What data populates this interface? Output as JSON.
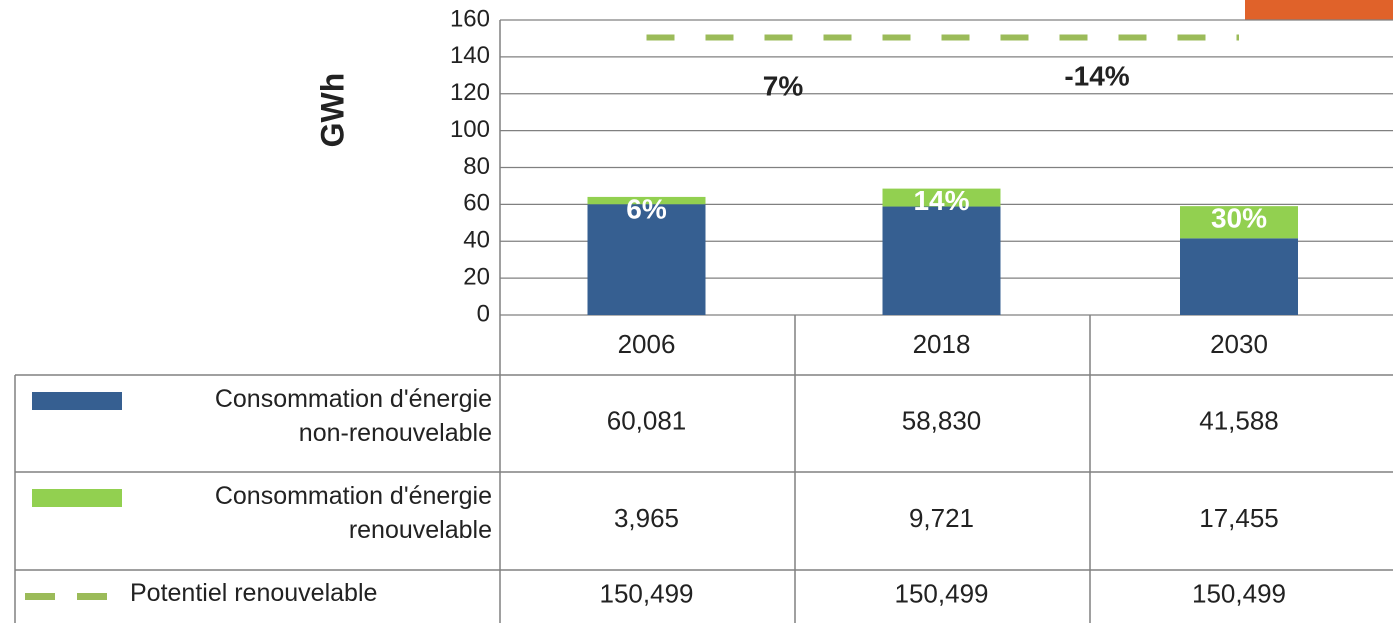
{
  "chart_data": {
    "type": "stacked_bar_with_table",
    "ylabel": "GWh",
    "categories": [
      "2006",
      "2018",
      "2030"
    ],
    "series": [
      {
        "name": "Consommation d'énergie non-renouvelable",
        "color": "#365f91",
        "values": [
          60.081,
          58.83,
          41.588
        ],
        "value_labels": [
          "60,081",
          "58,830",
          "41,588"
        ]
      },
      {
        "name": "Consommation d'énergie renouvelable",
        "color": "#92d050",
        "values": [
          3.965,
          9.721,
          17.455
        ],
        "value_labels": [
          "3,965",
          "9,721",
          "17,455"
        ],
        "share_labels": [
          "6%",
          "14%",
          "30%"
        ]
      },
      {
        "name": "Potentiel renouvelable",
        "color": "#9bbb59",
        "line": "dashed",
        "values": [
          150.499,
          150.499,
          150.499
        ],
        "value_labels": [
          "150,499",
          "150,499",
          "150,499"
        ]
      }
    ],
    "annotations": [
      "7%",
      "-14%"
    ],
    "ylim": [
      0,
      160
    ],
    "yticks": [
      0,
      20,
      40,
      60,
      80,
      100,
      120,
      140,
      160
    ],
    "grid": true
  }
}
